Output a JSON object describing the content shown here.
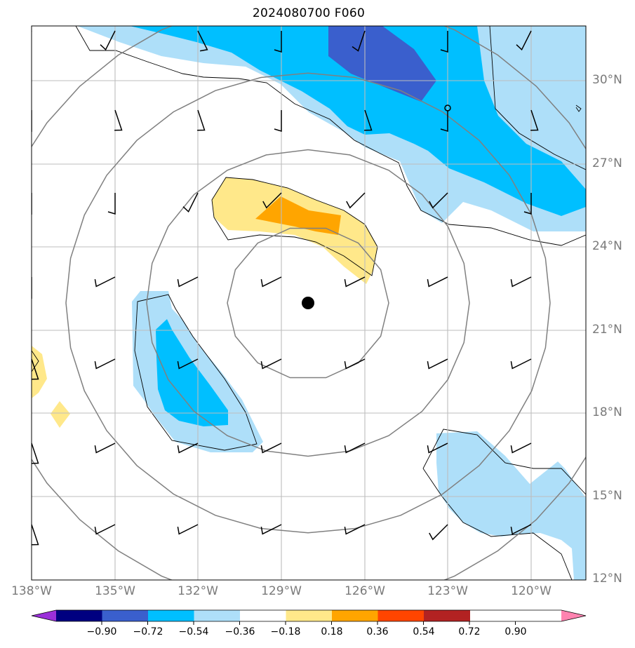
{
  "title": "2024080700 F060",
  "map": {
    "lat_ticks": [
      "30°N",
      "27°N",
      "24°N",
      "21°N",
      "18°N",
      "15°N",
      "12°N"
    ],
    "lon_ticks": [
      "138°W",
      "135°W",
      "132°W",
      "129°W",
      "126°W",
      "123°W",
      "120°W"
    ],
    "center_marker": "storm-center",
    "range_rings": 4
  },
  "colorbar": {
    "ticks": [
      "−0.90",
      "−0.72",
      "−0.54",
      "−0.36",
      "−0.18",
      "0.18",
      "0.36",
      "0.54",
      "0.72",
      "0.90"
    ],
    "colors": [
      "#9b30d9",
      "#000080",
      "#3a5fcd",
      "#00bfff",
      "#aedff9",
      "#ffffff",
      "#ffe88a",
      "#ffa500",
      "#ff4500",
      "#b22222",
      "#ff83b0"
    ]
  }
}
